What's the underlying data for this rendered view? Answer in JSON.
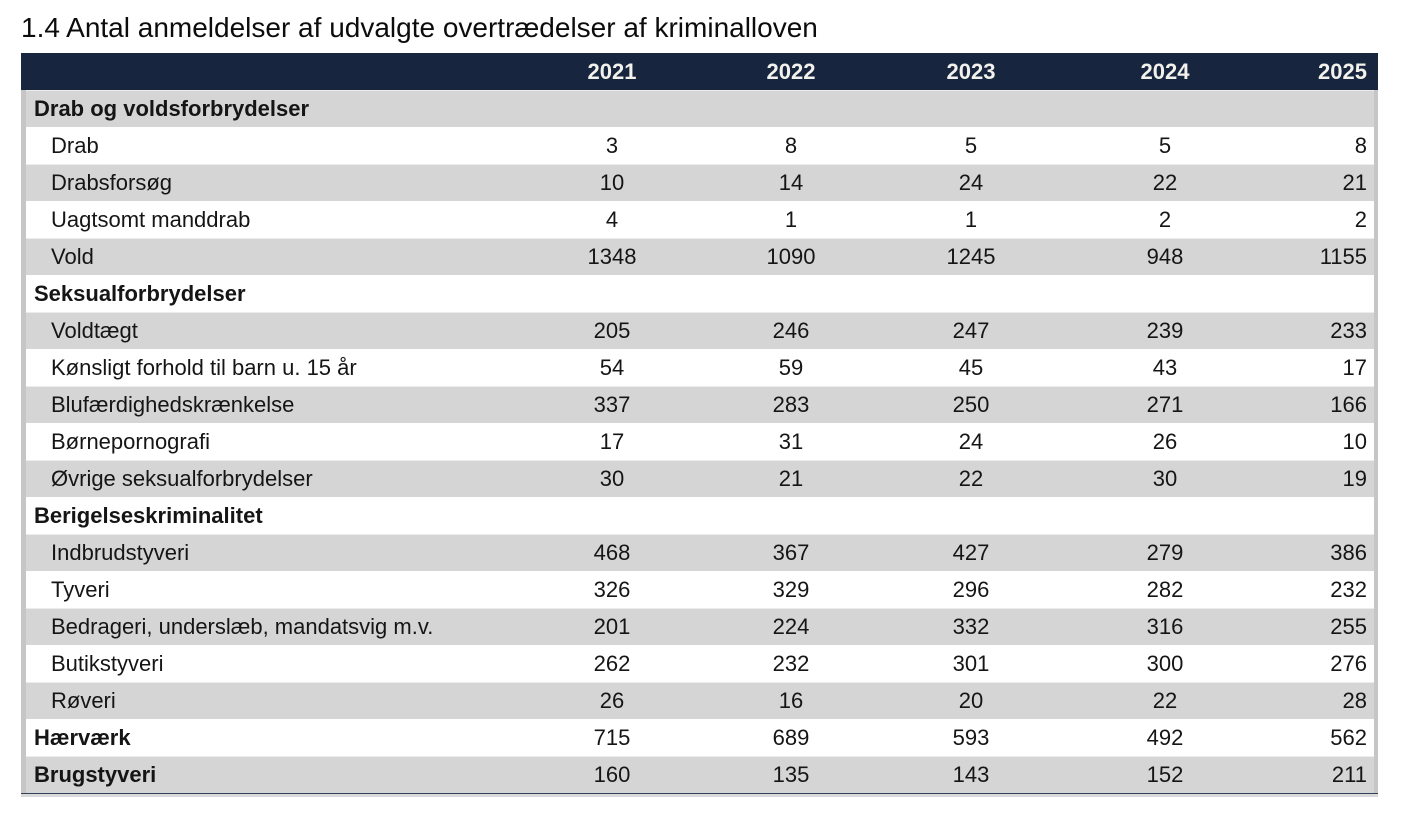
{
  "title": "1.4 Antal anmeldelser af udvalgte overtrædelser af kriminalloven",
  "table": {
    "header": {
      "years": [
        "2021",
        "2022",
        "2023",
        "2024",
        "2025"
      ]
    },
    "rows": [
      {
        "label": "Drab og voldsforbrydelser",
        "style": "section",
        "values": []
      },
      {
        "label": "Drab",
        "style": "item",
        "values": [
          "3",
          "8",
          "5",
          "5",
          "8"
        ]
      },
      {
        "label": "Drabsforsøg",
        "style": "item",
        "values": [
          "10",
          "14",
          "24",
          "22",
          "21"
        ]
      },
      {
        "label": "Uagtsomt manddrab",
        "style": "item",
        "values": [
          "4",
          "1",
          "1",
          "2",
          "2"
        ]
      },
      {
        "label": "Vold",
        "style": "item",
        "values": [
          "1348",
          "1090",
          "1245",
          "948",
          "1155"
        ]
      },
      {
        "label": "Seksualforbrydelser",
        "style": "section",
        "values": []
      },
      {
        "label": "Voldtægt",
        "style": "item",
        "values": [
          "205",
          "246",
          "247",
          "239",
          "233"
        ]
      },
      {
        "label": "Kønsligt forhold til barn u. 15 år",
        "style": "item",
        "values": [
          "54",
          "59",
          "45",
          "43",
          "17"
        ]
      },
      {
        "label": "Blufærdighedskrænkelse",
        "style": "item",
        "values": [
          "337",
          "283",
          "250",
          "271",
          "166"
        ]
      },
      {
        "label": "Børnepornografi",
        "style": "item",
        "values": [
          "17",
          "31",
          "24",
          "26",
          "10"
        ]
      },
      {
        "label": "Øvrige seksualforbrydelser",
        "style": "item",
        "values": [
          "30",
          "21",
          "22",
          "30",
          "19"
        ]
      },
      {
        "label": "Berigelseskriminalitet",
        "style": "section",
        "values": []
      },
      {
        "label": "Indbrudstyveri",
        "style": "item",
        "values": [
          "468",
          "367",
          "427",
          "279",
          "386"
        ]
      },
      {
        "label": "Tyveri",
        "style": "item",
        "values": [
          "326",
          "329",
          "296",
          "282",
          "232"
        ]
      },
      {
        "label": "Bedrageri, underslæb, mandatsvig m.v.",
        "style": "item",
        "values": [
          "201",
          "224",
          "332",
          "316",
          "255"
        ]
      },
      {
        "label": "Butikstyveri",
        "style": "item",
        "values": [
          "262",
          "232",
          "301",
          "300",
          "276"
        ]
      },
      {
        "label": "Røveri",
        "style": "item",
        "values": [
          "26",
          "16",
          "20",
          "22",
          "28"
        ]
      },
      {
        "label": "Hærværk",
        "style": "total",
        "values": [
          "715",
          "689",
          "593",
          "492",
          "562"
        ]
      },
      {
        "label": "Brugstyveri",
        "style": "total",
        "values": [
          "160",
          "135",
          "143",
          "152",
          "211"
        ]
      }
    ]
  },
  "colors": {
    "header_bg": "#17263e",
    "header_text": "#f2f1ec",
    "stripe_bg": "#d5d5d5",
    "row_bg": "#ffffff",
    "border_gray": "#c6c6c6",
    "text": "#151515"
  }
}
